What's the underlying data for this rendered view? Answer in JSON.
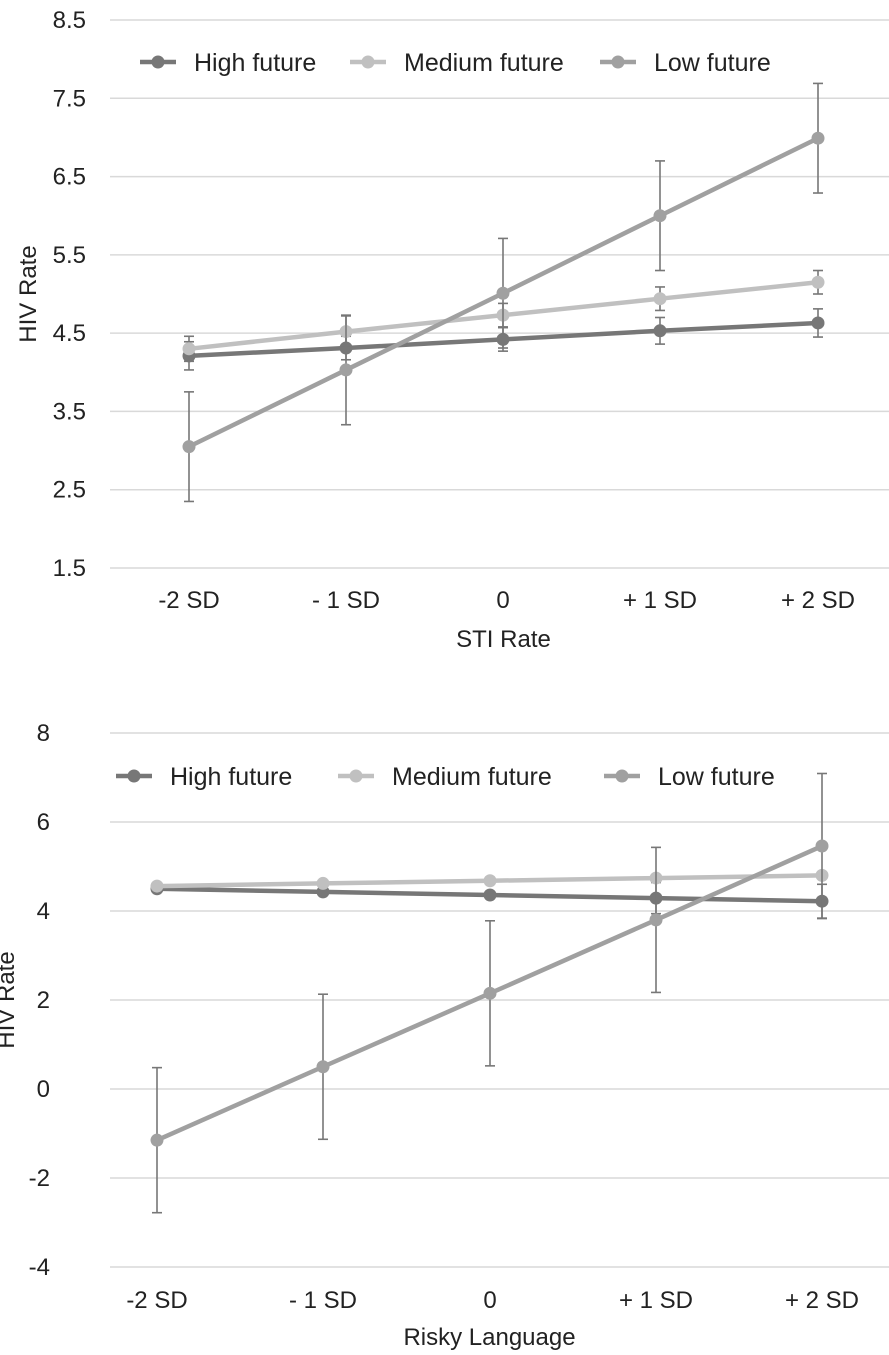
{
  "chart_data": [
    {
      "type": "line",
      "categories": [
        "-2 SD",
        "- 1 SD",
        "0",
        "+ 1 SD",
        "+ 2 SD"
      ],
      "xlabel": "STI Rate",
      "ylabel": "HIV Rate",
      "ylim": [
        1.5,
        8.5
      ],
      "yticks": [
        "8.5",
        "7.5",
        "6.5",
        "5.5",
        "4.5",
        "3.5",
        "2.5",
        "1.5"
      ],
      "grid": true,
      "legend_position": "top",
      "series": [
        {
          "name": "High future",
          "color": "#777777",
          "values": [
            4.21,
            4.31,
            4.42,
            4.53,
            4.63
          ],
          "errors": [
            0.18,
            0.15,
            0.15,
            0.17,
            0.18
          ]
        },
        {
          "name": "Medium future",
          "color": "#c0c0c0",
          "values": [
            4.3,
            4.52,
            4.73,
            4.94,
            5.15
          ],
          "errors": [
            0.16,
            0.2,
            0.15,
            0.15,
            0.15
          ]
        },
        {
          "name": "Low future",
          "color": "#a0a0a0",
          "values": [
            3.05,
            4.03,
            5.01,
            6.0,
            6.99
          ],
          "errors": [
            0.7,
            0.7,
            0.7,
            0.7,
            0.7
          ]
        }
      ]
    },
    {
      "type": "line",
      "categories": [
        "-2 SD",
        "- 1 SD",
        "0",
        "+ 1 SD",
        "+ 2 SD"
      ],
      "xlabel": "Risky Language",
      "ylabel": "HIV Rate",
      "ylim": [
        -4,
        8
      ],
      "yticks": [
        "8",
        "6",
        "4",
        "2",
        "0",
        "-2",
        "-4"
      ],
      "grid": true,
      "legend_position": "top",
      "series": [
        {
          "name": "High future",
          "color": "#777777",
          "values": [
            4.5,
            4.43,
            4.36,
            4.29,
            4.22
          ],
          "errors": [
            0,
            0,
            0,
            0.35,
            0.38
          ]
        },
        {
          "name": "Medium future",
          "color": "#c0c0c0",
          "values": [
            4.56,
            4.62,
            4.68,
            4.74,
            4.8
          ],
          "errors": [
            0,
            0,
            0,
            0,
            0
          ]
        },
        {
          "name": "Low future",
          "color": "#a0a0a0",
          "values": [
            -1.15,
            0.5,
            2.15,
            3.8,
            5.46
          ],
          "errors": [
            1.63,
            1.63,
            1.63,
            1.63,
            1.63
          ]
        }
      ]
    }
  ]
}
